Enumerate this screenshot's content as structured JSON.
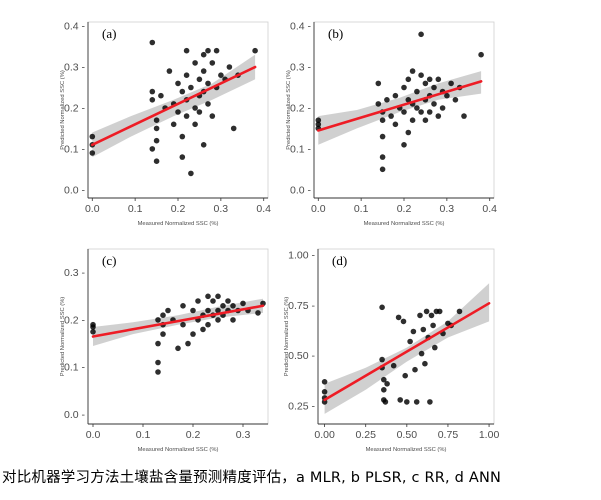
{
  "caption": "对比机器学习方法土壤盐含量预测精度评估，a MLR, b PLSR, c RR, d ANN",
  "colors": {
    "regression_line": "#ee1c25",
    "confidence_band": "#c8c8c8",
    "point": "#000000",
    "panel_border": "#333333"
  },
  "chart_data": [
    {
      "type": "scatter",
      "panel": "(a)",
      "xlabel": "Measured Normalized SSC (%)",
      "ylabel": "Predicted Normalized SSC (%)",
      "xlim": [
        -0.01,
        0.41
      ],
      "ylim": [
        -0.02,
        0.41
      ],
      "xticks": [
        0.0,
        0.1,
        0.2,
        0.3,
        0.4
      ],
      "xtick_labels": [
        "0.0",
        "0.1",
        "0.2",
        "0.3",
        "0.4"
      ],
      "yticks": [
        0.0,
        0.1,
        0.2,
        0.3,
        0.4
      ],
      "ytick_labels": [
        "0.0 -",
        "0.1 -",
        "0.2 -",
        "0.3 -",
        "0.4 -"
      ],
      "regression": {
        "x": [
          0.0,
          0.38
        ],
        "y": [
          0.11,
          0.3
        ]
      },
      "band": {
        "x": [
          0.0,
          0.09,
          0.19,
          0.28,
          0.38
        ],
        "upper": [
          0.14,
          0.18,
          0.22,
          0.26,
          0.33
        ],
        "lower": [
          0.08,
          0.13,
          0.18,
          0.22,
          0.27
        ]
      },
      "points": [
        [
          0.0,
          0.13
        ],
        [
          0.0,
          0.11
        ],
        [
          0.0,
          0.09
        ],
        [
          0.14,
          0.36
        ],
        [
          0.14,
          0.24
        ],
        [
          0.14,
          0.22
        ],
        [
          0.15,
          0.17
        ],
        [
          0.15,
          0.15
        ],
        [
          0.15,
          0.12
        ],
        [
          0.14,
          0.1
        ],
        [
          0.15,
          0.07
        ],
        [
          0.16,
          0.23
        ],
        [
          0.17,
          0.2
        ],
        [
          0.18,
          0.29
        ],
        [
          0.19,
          0.21
        ],
        [
          0.19,
          0.16
        ],
        [
          0.2,
          0.26
        ],
        [
          0.2,
          0.19
        ],
        [
          0.21,
          0.24
        ],
        [
          0.21,
          0.13
        ],
        [
          0.21,
          0.08
        ],
        [
          0.22,
          0.34
        ],
        [
          0.22,
          0.28
        ],
        [
          0.22,
          0.22
        ],
        [
          0.22,
          0.18
        ],
        [
          0.23,
          0.04
        ],
        [
          0.23,
          0.25
        ],
        [
          0.24,
          0.31
        ],
        [
          0.24,
          0.2
        ],
        [
          0.24,
          0.16
        ],
        [
          0.25,
          0.27
        ],
        [
          0.25,
          0.23
        ],
        [
          0.25,
          0.19
        ],
        [
          0.26,
          0.33
        ],
        [
          0.26,
          0.29
        ],
        [
          0.26,
          0.24
        ],
        [
          0.26,
          0.11
        ],
        [
          0.27,
          0.34
        ],
        [
          0.27,
          0.26
        ],
        [
          0.27,
          0.21
        ],
        [
          0.28,
          0.31
        ],
        [
          0.28,
          0.18
        ],
        [
          0.29,
          0.25
        ],
        [
          0.29,
          0.34
        ],
        [
          0.3,
          0.28
        ],
        [
          0.31,
          0.27
        ],
        [
          0.32,
          0.3
        ],
        [
          0.33,
          0.15
        ],
        [
          0.34,
          0.28
        ],
        [
          0.38,
          0.34
        ]
      ]
    },
    {
      "type": "scatter",
      "panel": "(b)",
      "xlabel": "Measured Normalized SSC (%)",
      "ylabel": "Predicted Normalized SSC (%)",
      "xlim": [
        -0.01,
        0.41
      ],
      "ylim": [
        -0.02,
        0.41
      ],
      "xticks": [
        0.0,
        0.1,
        0.2,
        0.3,
        0.4
      ],
      "xtick_labels": [
        "0.0",
        "0.1",
        "0.2",
        "0.3",
        "0.4"
      ],
      "yticks": [
        0.0,
        0.1,
        0.2,
        0.3,
        0.4
      ],
      "ytick_labels": [
        "0.0 -",
        "0.1 -",
        "0.2 -",
        "0.3 -",
        "0.4 -"
      ],
      "regression": {
        "x": [
          0.0,
          0.38
        ],
        "y": [
          0.145,
          0.265
        ]
      },
      "band": {
        "x": [
          0.0,
          0.09,
          0.19,
          0.28,
          0.38
        ],
        "upper": [
          0.18,
          0.195,
          0.225,
          0.26,
          0.29
        ],
        "lower": [
          0.11,
          0.15,
          0.19,
          0.22,
          0.235
        ]
      },
      "points": [
        [
          0.0,
          0.17
        ],
        [
          0.0,
          0.16
        ],
        [
          0.0,
          0.15
        ],
        [
          0.14,
          0.26
        ],
        [
          0.14,
          0.21
        ],
        [
          0.15,
          0.19
        ],
        [
          0.15,
          0.17
        ],
        [
          0.15,
          0.13
        ],
        [
          0.15,
          0.08
        ],
        [
          0.15,
          0.05
        ],
        [
          0.16,
          0.22
        ],
        [
          0.17,
          0.18
        ],
        [
          0.18,
          0.23
        ],
        [
          0.18,
          0.16
        ],
        [
          0.19,
          0.2
        ],
        [
          0.2,
          0.25
        ],
        [
          0.2,
          0.19
        ],
        [
          0.2,
          0.11
        ],
        [
          0.21,
          0.27
        ],
        [
          0.21,
          0.22
        ],
        [
          0.21,
          0.14
        ],
        [
          0.22,
          0.29
        ],
        [
          0.22,
          0.21
        ],
        [
          0.22,
          0.17
        ],
        [
          0.23,
          0.24
        ],
        [
          0.23,
          0.2
        ],
        [
          0.24,
          0.38
        ],
        [
          0.24,
          0.28
        ],
        [
          0.24,
          0.19
        ],
        [
          0.25,
          0.26
        ],
        [
          0.25,
          0.22
        ],
        [
          0.25,
          0.17
        ],
        [
          0.26,
          0.27
        ],
        [
          0.26,
          0.23
        ],
        [
          0.26,
          0.19
        ],
        [
          0.27,
          0.25
        ],
        [
          0.27,
          0.21
        ],
        [
          0.28,
          0.27
        ],
        [
          0.28,
          0.18
        ],
        [
          0.29,
          0.24
        ],
        [
          0.29,
          0.2
        ],
        [
          0.3,
          0.23
        ],
        [
          0.31,
          0.26
        ],
        [
          0.32,
          0.22
        ],
        [
          0.33,
          0.25
        ],
        [
          0.34,
          0.18
        ],
        [
          0.38,
          0.33
        ]
      ]
    },
    {
      "type": "scatter",
      "panel": "(c)",
      "xlabel": "Measured Normalized SSC (%)",
      "ylabel": "Predicted Normalized SSC (%)",
      "xlim": [
        -0.01,
        0.35
      ],
      "ylim": [
        -0.02,
        0.35
      ],
      "xticks": [
        0.0,
        0.1,
        0.2,
        0.3
      ],
      "xtick_labels": [
        "0.0",
        "0.1",
        "0.2",
        "0.3"
      ],
      "yticks": [
        0.0,
        0.1,
        0.2,
        0.3
      ],
      "ytick_labels": [
        "0.0 -",
        "0.1 -",
        "0.2 -",
        "0.3 -"
      ],
      "regression": {
        "x": [
          0.0,
          0.34
        ],
        "y": [
          0.165,
          0.23
        ]
      },
      "band": {
        "x": [
          0.0,
          0.08,
          0.17,
          0.25,
          0.34
        ],
        "upper": [
          0.185,
          0.195,
          0.21,
          0.228,
          0.245
        ],
        "lower": [
          0.145,
          0.17,
          0.19,
          0.205,
          0.215
        ]
      },
      "points": [
        [
          0.0,
          0.19
        ],
        [
          0.0,
          0.185
        ],
        [
          0.0,
          0.175
        ],
        [
          0.13,
          0.2
        ],
        [
          0.13,
          0.15
        ],
        [
          0.13,
          0.11
        ],
        [
          0.13,
          0.09
        ],
        [
          0.14,
          0.21
        ],
        [
          0.14,
          0.19
        ],
        [
          0.14,
          0.17
        ],
        [
          0.15,
          0.22
        ],
        [
          0.16,
          0.2
        ],
        [
          0.17,
          0.14
        ],
        [
          0.18,
          0.23
        ],
        [
          0.18,
          0.19
        ],
        [
          0.19,
          0.15
        ],
        [
          0.2,
          0.22
        ],
        [
          0.2,
          0.17
        ],
        [
          0.21,
          0.24
        ],
        [
          0.21,
          0.2
        ],
        [
          0.22,
          0.21
        ],
        [
          0.22,
          0.18
        ],
        [
          0.23,
          0.25
        ],
        [
          0.23,
          0.22
        ],
        [
          0.23,
          0.19
        ],
        [
          0.24,
          0.24
        ],
        [
          0.24,
          0.21
        ],
        [
          0.25,
          0.25
        ],
        [
          0.25,
          0.22
        ],
        [
          0.25,
          0.2
        ],
        [
          0.26,
          0.23
        ],
        [
          0.26,
          0.21
        ],
        [
          0.27,
          0.24
        ],
        [
          0.27,
          0.22
        ],
        [
          0.28,
          0.23
        ],
        [
          0.28,
          0.2
        ],
        [
          0.29,
          0.22
        ],
        [
          0.3,
          0.235
        ],
        [
          0.31,
          0.22
        ],
        [
          0.33,
          0.215
        ],
        [
          0.34,
          0.235
        ]
      ]
    },
    {
      "type": "scatter",
      "panel": "(d)",
      "xlabel": "Measured Normalized SSC (%)",
      "ylabel": "Predicted Normalized SSC (%)",
      "xlim": [
        -0.04,
        1.03
      ],
      "ylim": [
        0.16,
        1.03
      ],
      "xticks": [
        0.0,
        0.25,
        0.5,
        0.75,
        1.0
      ],
      "xtick_labels": [
        "0.00",
        "0.25",
        "0.50",
        "0.75",
        "1.00"
      ],
      "yticks": [
        0.25,
        0.5,
        0.75,
        1.0
      ],
      "ytick_labels": [
        "0.25 -",
        "0.50 -",
        "0.75 -",
        "1.00 -"
      ],
      "regression": {
        "x": [
          0.0,
          1.0
        ],
        "y": [
          0.28,
          0.76
        ]
      },
      "band": {
        "x": [
          0.0,
          0.25,
          0.5,
          0.75,
          1.0
        ],
        "upper": [
          0.36,
          0.44,
          0.54,
          0.67,
          0.86
        ],
        "lower": [
          0.21,
          0.33,
          0.47,
          0.59,
          0.67
        ]
      },
      "points": [
        [
          0.0,
          0.37
        ],
        [
          0.0,
          0.32
        ],
        [
          0.0,
          0.29
        ],
        [
          0.0,
          0.27
        ],
        [
          0.35,
          0.74
        ],
        [
          0.35,
          0.48
        ],
        [
          0.35,
          0.44
        ],
        [
          0.36,
          0.38
        ],
        [
          0.36,
          0.33
        ],
        [
          0.36,
          0.28
        ],
        [
          0.37,
          0.27
        ],
        [
          0.38,
          0.36
        ],
        [
          0.42,
          0.45
        ],
        [
          0.45,
          0.69
        ],
        [
          0.46,
          0.28
        ],
        [
          0.48,
          0.67
        ],
        [
          0.49,
          0.4
        ],
        [
          0.5,
          0.27
        ],
        [
          0.52,
          0.57
        ],
        [
          0.54,
          0.62
        ],
        [
          0.55,
          0.43
        ],
        [
          0.56,
          0.27
        ],
        [
          0.58,
          0.7
        ],
        [
          0.59,
          0.51
        ],
        [
          0.6,
          0.63
        ],
        [
          0.61,
          0.46
        ],
        [
          0.62,
          0.72
        ],
        [
          0.63,
          0.59
        ],
        [
          0.64,
          0.27
        ],
        [
          0.65,
          0.7
        ],
        [
          0.66,
          0.65
        ],
        [
          0.67,
          0.54
        ],
        [
          0.68,
          0.72
        ],
        [
          0.7,
          0.72
        ],
        [
          0.72,
          0.61
        ],
        [
          0.75,
          0.66
        ],
        [
          0.77,
          0.65
        ],
        [
          0.82,
          0.72
        ]
      ]
    }
  ]
}
